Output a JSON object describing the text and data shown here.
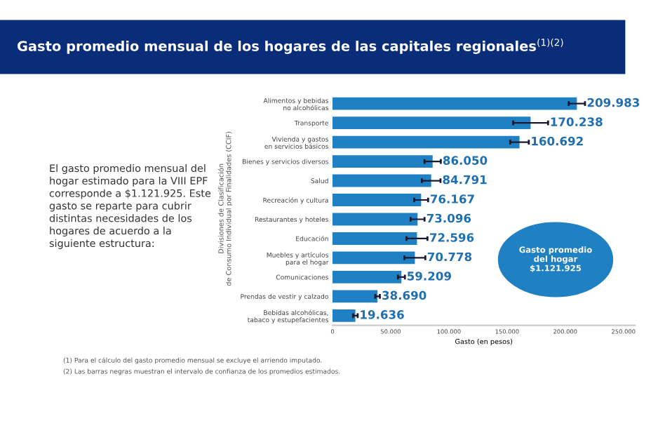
{
  "chart_data": {
    "type": "bar",
    "orientation": "horizontal",
    "title": "Gasto promedio mensual de los hogares de las capitales regionales$^{(1)(2)}$",
    "categories": [
      "Alimentos y bebidas\nno alcohólicas",
      "Transporte",
      "Vivienda y gastos\nen servicios básicos",
      "Bienes y servicios diversos",
      "Salud",
      "Recreación y cultura",
      "Restaurantes y hoteles",
      "Educación",
      "Muebles y artículos\npara el hogar",
      "Comunicaciones",
      "Prendas de vestir y calzado",
      "Bebidas alcohólicas,\ntabaco y estupefacientes"
    ],
    "values": [
      209983,
      170238,
      160692,
      86050,
      84791,
      76167,
      73096,
      72596,
      70778,
      59209,
      38690,
      19636
    ],
    "errors": [
      7000,
      15000,
      8000,
      7000,
      8000,
      6000,
      6000,
      9000,
      9000,
      3000,
      2000,
      2000
    ],
    "value_labels": [
      "209.983",
      "170.238",
      "160.692",
      "86.050",
      "84.791",
      "76.167",
      "73.096",
      "72.596",
      "70.778",
      "59.209",
      "38.690",
      "19.636"
    ],
    "color": "#1f80c3",
    "xlim": [
      0,
      260000
    ],
    "xticks": [
      {
        "value": 0,
        "label": "0"
      },
      {
        "value": 50000,
        "label": "50.000"
      },
      {
        "value": 100000,
        "label": "100.000"
      },
      {
        "value": 150000,
        "label": "150.000"
      },
      {
        "value": 200000,
        "label": "200.000"
      },
      {
        "value": 250000,
        "label": "250.000"
      }
    ],
    "xlabel": "Gasto (en pesos)",
    "ylabel": "Divisiones de Clasificación\nde Consumo Individual por Finalidades (CCIF)",
    "grid": false,
    "annotations": [
      "El gasto promedio mensual del\nhogar estimado para la VIII EPF\ncorresponde a $1.121.925. Este\ngasto se reparte para cubrir\ndistintas necesidades de los\nhogares de acuerdo a la\nsiguiente estructura:",
      "Gasto promedio\ndel hogar\n$1.121.925",
      "(1) Para el cálculo del gasto promedio mensual se excluye el arriendo imputado.",
      "(2) Las barras negras muestran el intervalo de confianza de los promedios estimados."
    ]
  }
}
